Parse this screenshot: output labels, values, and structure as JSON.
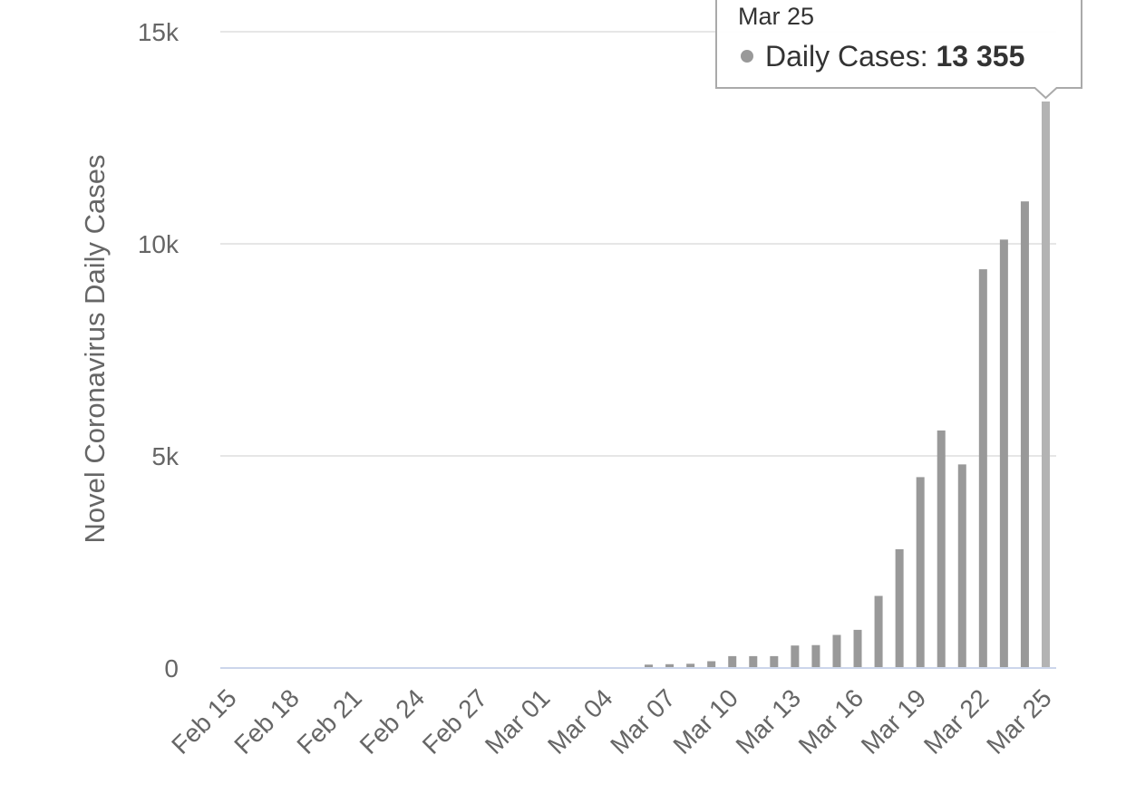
{
  "chart_data": {
    "type": "bar",
    "y_axis_label": "Novel Coronavirus Daily Cases",
    "categories": [
      "Feb 15",
      null,
      null,
      "Feb 18",
      null,
      null,
      "Feb 21",
      null,
      null,
      "Feb 24",
      null,
      null,
      "Feb 27",
      null,
      null,
      "Mar 01",
      null,
      null,
      "Mar 04",
      null,
      null,
      "Mar 07",
      null,
      null,
      "Mar 10",
      null,
      null,
      "Mar 13",
      null,
      null,
      "Mar 16",
      null,
      null,
      "Mar 19",
      null,
      null,
      "Mar 22",
      null,
      null,
      "Mar 25"
    ],
    "series": [
      {
        "name": "Daily Cases",
        "color": "#999999",
        "hover_color": "#b3b3b3",
        "values": [
          0,
          0,
          0,
          0,
          0,
          0,
          0,
          0,
          0,
          0,
          0,
          0,
          0,
          0,
          0,
          0,
          0,
          0,
          0,
          0,
          80,
          90,
          100,
          160,
          280,
          280,
          280,
          530,
          540,
          780,
          900,
          1700,
          2800,
          4500,
          5600,
          4800,
          9400,
          10100,
          11000,
          13355
        ]
      }
    ],
    "ylim": [
      0,
      15000
    ],
    "yticks": [
      0,
      {
        "value": 5000,
        "label": "5k"
      },
      {
        "value": 10000,
        "label": "10k"
      },
      {
        "value": 15000,
        "label": "15k"
      }
    ],
    "grid": true,
    "tooltip": {
      "date": "Mar 25",
      "label": "Daily Cases:",
      "value": "13 355",
      "index": 39
    }
  }
}
